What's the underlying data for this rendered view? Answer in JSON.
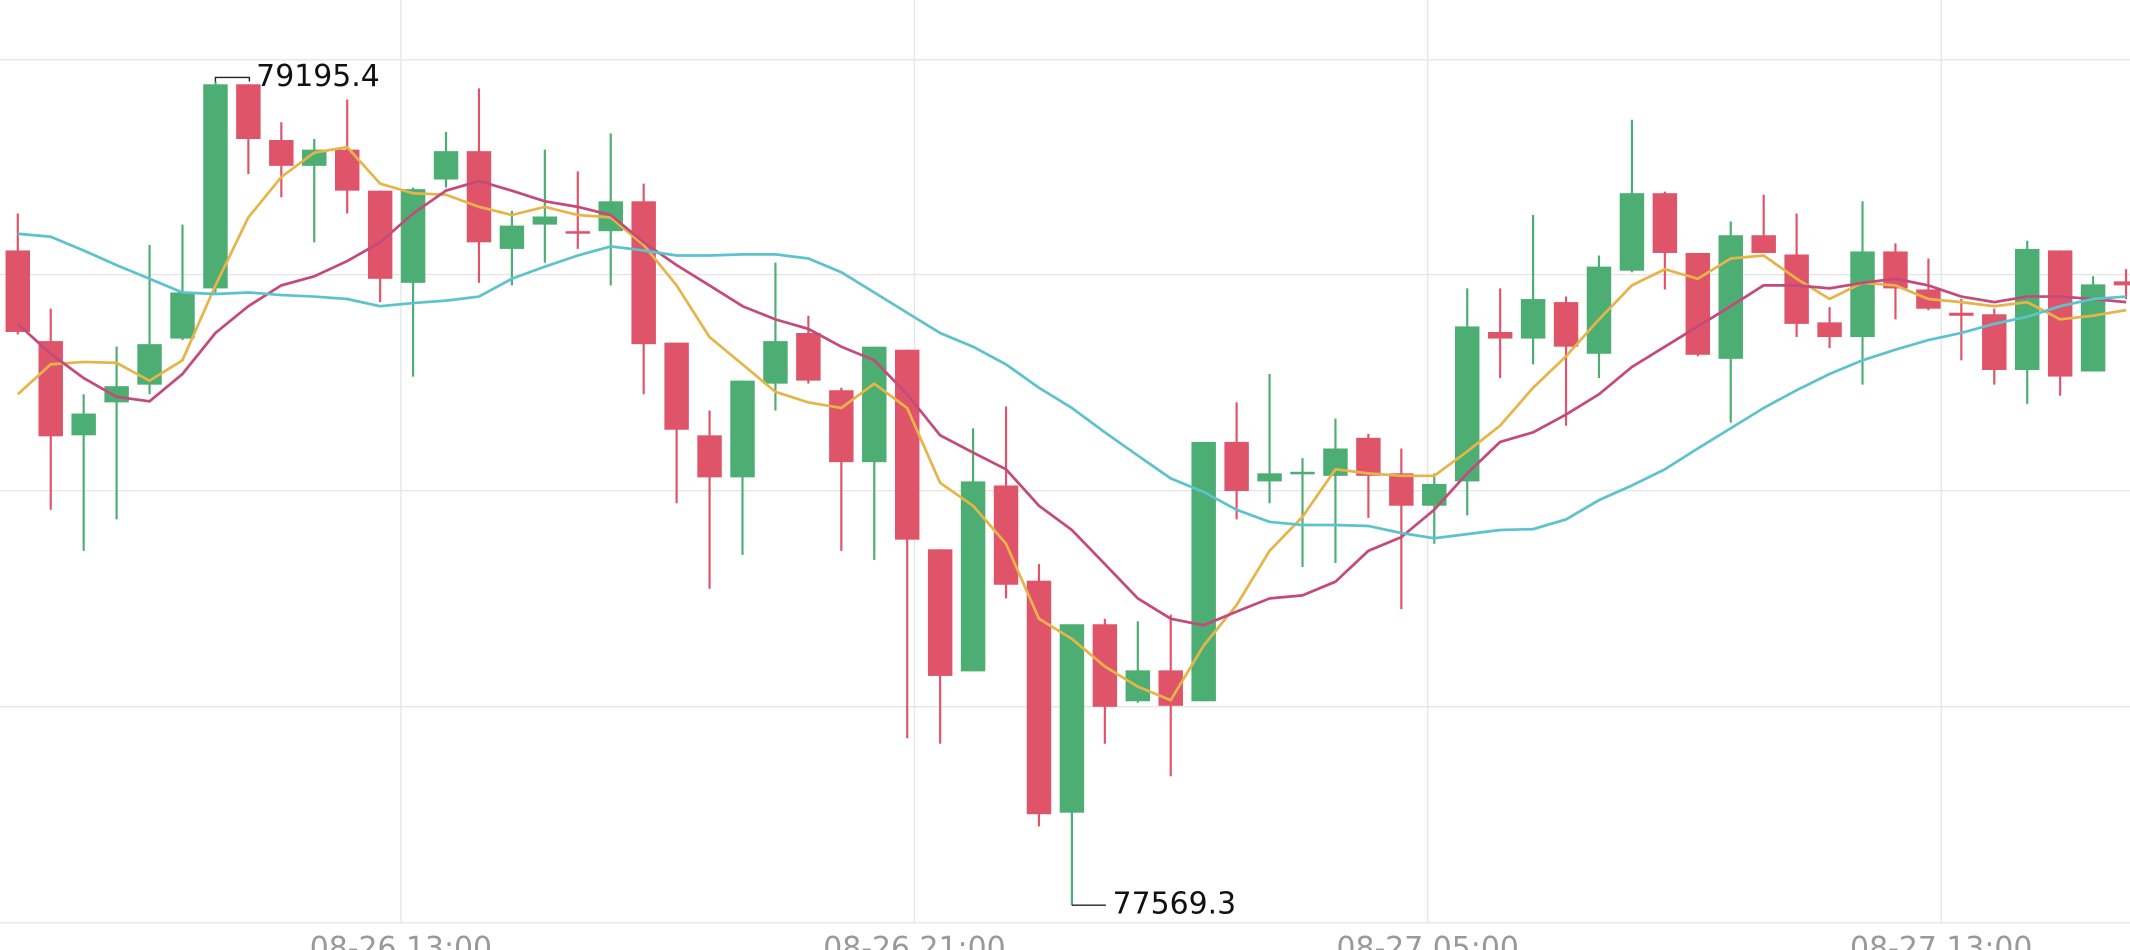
{
  "chart_data": {
    "type": "candlestick",
    "open": [
      78862,
      78683,
      78497,
      78562,
      78597,
      78688,
      78787,
      79190,
      79080,
      79029,
      79061,
      78980,
      78798,
      79002,
      79058,
      78865,
      78913,
      78900,
      78900,
      78959,
      78680,
      78497,
      78414,
      78599,
      78699,
      78586,
      78444,
      78666,
      78272,
      78031,
      78398,
      78210,
      77752,
      78124,
      77972,
      78033,
      77972,
      78484,
      78406,
      78420,
      78417,
      78492,
      78422,
      78358,
      78406,
      78701,
      78688,
      78760,
      78658,
      78822,
      78975,
      78857,
      78648,
      78892,
      78854,
      78720,
      78691,
      78860,
      78785,
      78739,
      78736,
      78626,
      78862,
      78623,
      78801
    ],
    "high": [
      78935,
      78747,
      78578,
      78672,
      78873,
      78913,
      79195.4,
      79190,
      79115,
      79082,
      79160,
      78980,
      78986,
      79096,
      79182,
      78940,
      79061,
      79018,
      79093,
      78994,
      78680,
      78546,
      78605,
      78838,
      78733,
      78591,
      78672,
      78666,
      78272,
      78511,
      78554,
      78243,
      78124,
      78135,
      78130,
      78143,
      78484,
      78562,
      78618,
      78452,
      78530,
      78500,
      78471,
      78422,
      78787,
      78787,
      78932,
      78771,
      78852,
      79120,
      78978,
      78857,
      78919,
      78972,
      78935,
      78750,
      78959,
      78876,
      78846,
      78766,
      78747,
      78881,
      78862,
      78811,
      78825
    ],
    "low": [
      78696,
      78350,
      78269,
      78331,
      78578,
      78685,
      78779,
      79013,
      78967,
      78878,
      78935,
      78760,
      78613,
      78986,
      78798,
      78793,
      78838,
      78865,
      78793,
      78578,
      78363,
      78194,
      78261,
      78546,
      78599,
      78269,
      78251,
      77899,
      77888,
      78031,
      78175,
      77725,
      77569.3,
      77888,
      77969,
      77824,
      77972,
      78331,
      78363,
      78237,
      78245,
      78334,
      78154,
      78283,
      78339,
      78610,
      78637,
      78516,
      78610,
      78819,
      78785,
      78653,
      78522,
      78857,
      78691,
      78669,
      78597,
      78726,
      78744,
      78645,
      78597,
      78559,
      78575,
      78623,
      78766
    ],
    "close": [
      78701,
      78495,
      78540,
      78594,
      78677,
      78779,
      79190,
      79082,
      79029,
      79061,
      78980,
      78806,
      78983,
      79058,
      78878,
      78911,
      78929,
      78895,
      78959,
      78677,
      78508,
      78414,
      78605,
      78683,
      78605,
      78444,
      78672,
      78291,
      78022,
      78406,
      78202,
      77749,
      78124,
      77961,
      78033,
      77963,
      78484,
      78387,
      78422,
      78425,
      78471,
      78417,
      78358,
      78401,
      78712,
      78688,
      78766,
      78672,
      78830,
      78975,
      78857,
      78656,
      78892,
      78857,
      78717,
      78691,
      78860,
      78787,
      78747,
      78733,
      78626,
      78865,
      78613,
      78795,
      78793
    ],
    "up_color": "#4cae72",
    "down_color": "#e05469",
    "overlays": [
      {
        "color": "#e6b448",
        "values": [
          78578,
          78637,
          78642,
          78640,
          78605,
          78645,
          78793,
          78927,
          79007,
          79055,
          79066,
          78994,
          78975,
          78972,
          78948,
          78932,
          78948,
          78932,
          78927,
          78873,
          78793,
          78691,
          78637,
          78583,
          78562,
          78551,
          78599,
          78551,
          78403,
          78358,
          78283,
          78135,
          78095,
          78041,
          78001,
          77974,
          78082,
          78162,
          78269,
          78336,
          78430,
          78422,
          78417,
          78417,
          78465,
          78516,
          78591,
          78653,
          78726,
          78793,
          78825,
          78806,
          78846,
          78852,
          78806,
          78766,
          78798,
          78793,
          78766,
          78760,
          78752,
          78760,
          78726,
          78733,
          78744
        ]
      },
      {
        "color": "#c44a7c",
        "values": [
          78717,
          78658,
          78610,
          78573,
          78564,
          78618,
          78699,
          78752,
          78793,
          78811,
          78841,
          78878,
          78935,
          78980,
          78999,
          78980,
          78959,
          78948,
          78932,
          78878,
          78833,
          78793,
          78752,
          78726,
          78707,
          78672,
          78645,
          78578,
          78497,
          78463,
          78430,
          78358,
          78310,
          78243,
          78175,
          78135,
          78122,
          78149,
          78175,
          78181,
          78208,
          78269,
          78296,
          78350,
          78422,
          78484,
          78503,
          78538,
          78578,
          78632,
          78672,
          78712,
          78752,
          78793,
          78793,
          78787,
          78798,
          78806,
          78793,
          78771,
          78760,
          78771,
          78771,
          78766,
          78760
        ]
      },
      {
        "color": "#5cc3cd",
        "values": [
          78895,
          78889,
          78862,
          78833,
          78806,
          78779,
          78776,
          78779,
          78774,
          78771,
          78766,
          78752,
          78758,
          78763,
          78771,
          78806,
          78830,
          78852,
          78870,
          78862,
          78852,
          78852,
          78854,
          78854,
          78846,
          78819,
          78779,
          78739,
          78699,
          78672,
          78637,
          78591,
          78551,
          78503,
          78457,
          78412,
          78385,
          78350,
          78326,
          78320,
          78320,
          78318,
          78304,
          78294,
          78302,
          78310,
          78312,
          78331,
          78369,
          78398,
          78430,
          78471,
          78511,
          78551,
          78586,
          78618,
          78645,
          78666,
          78685,
          78699,
          78717,
          78731,
          78752,
          78766,
          78771
        ]
      }
    ],
    "xlim": [
      -0.54,
      64.12
    ],
    "ylim": [
      77534.6,
      79356.4
    ],
    "xticks": [
      {
        "value": 11.63,
        "label": "08-26 13:00"
      },
      {
        "value": 27.22,
        "label": "08-26 21:00"
      },
      {
        "value": 42.8,
        "label": "08-27 05:00"
      },
      {
        "value": 58.39,
        "label": "08-27 13:00"
      }
    ],
    "grid": true
  }
}
